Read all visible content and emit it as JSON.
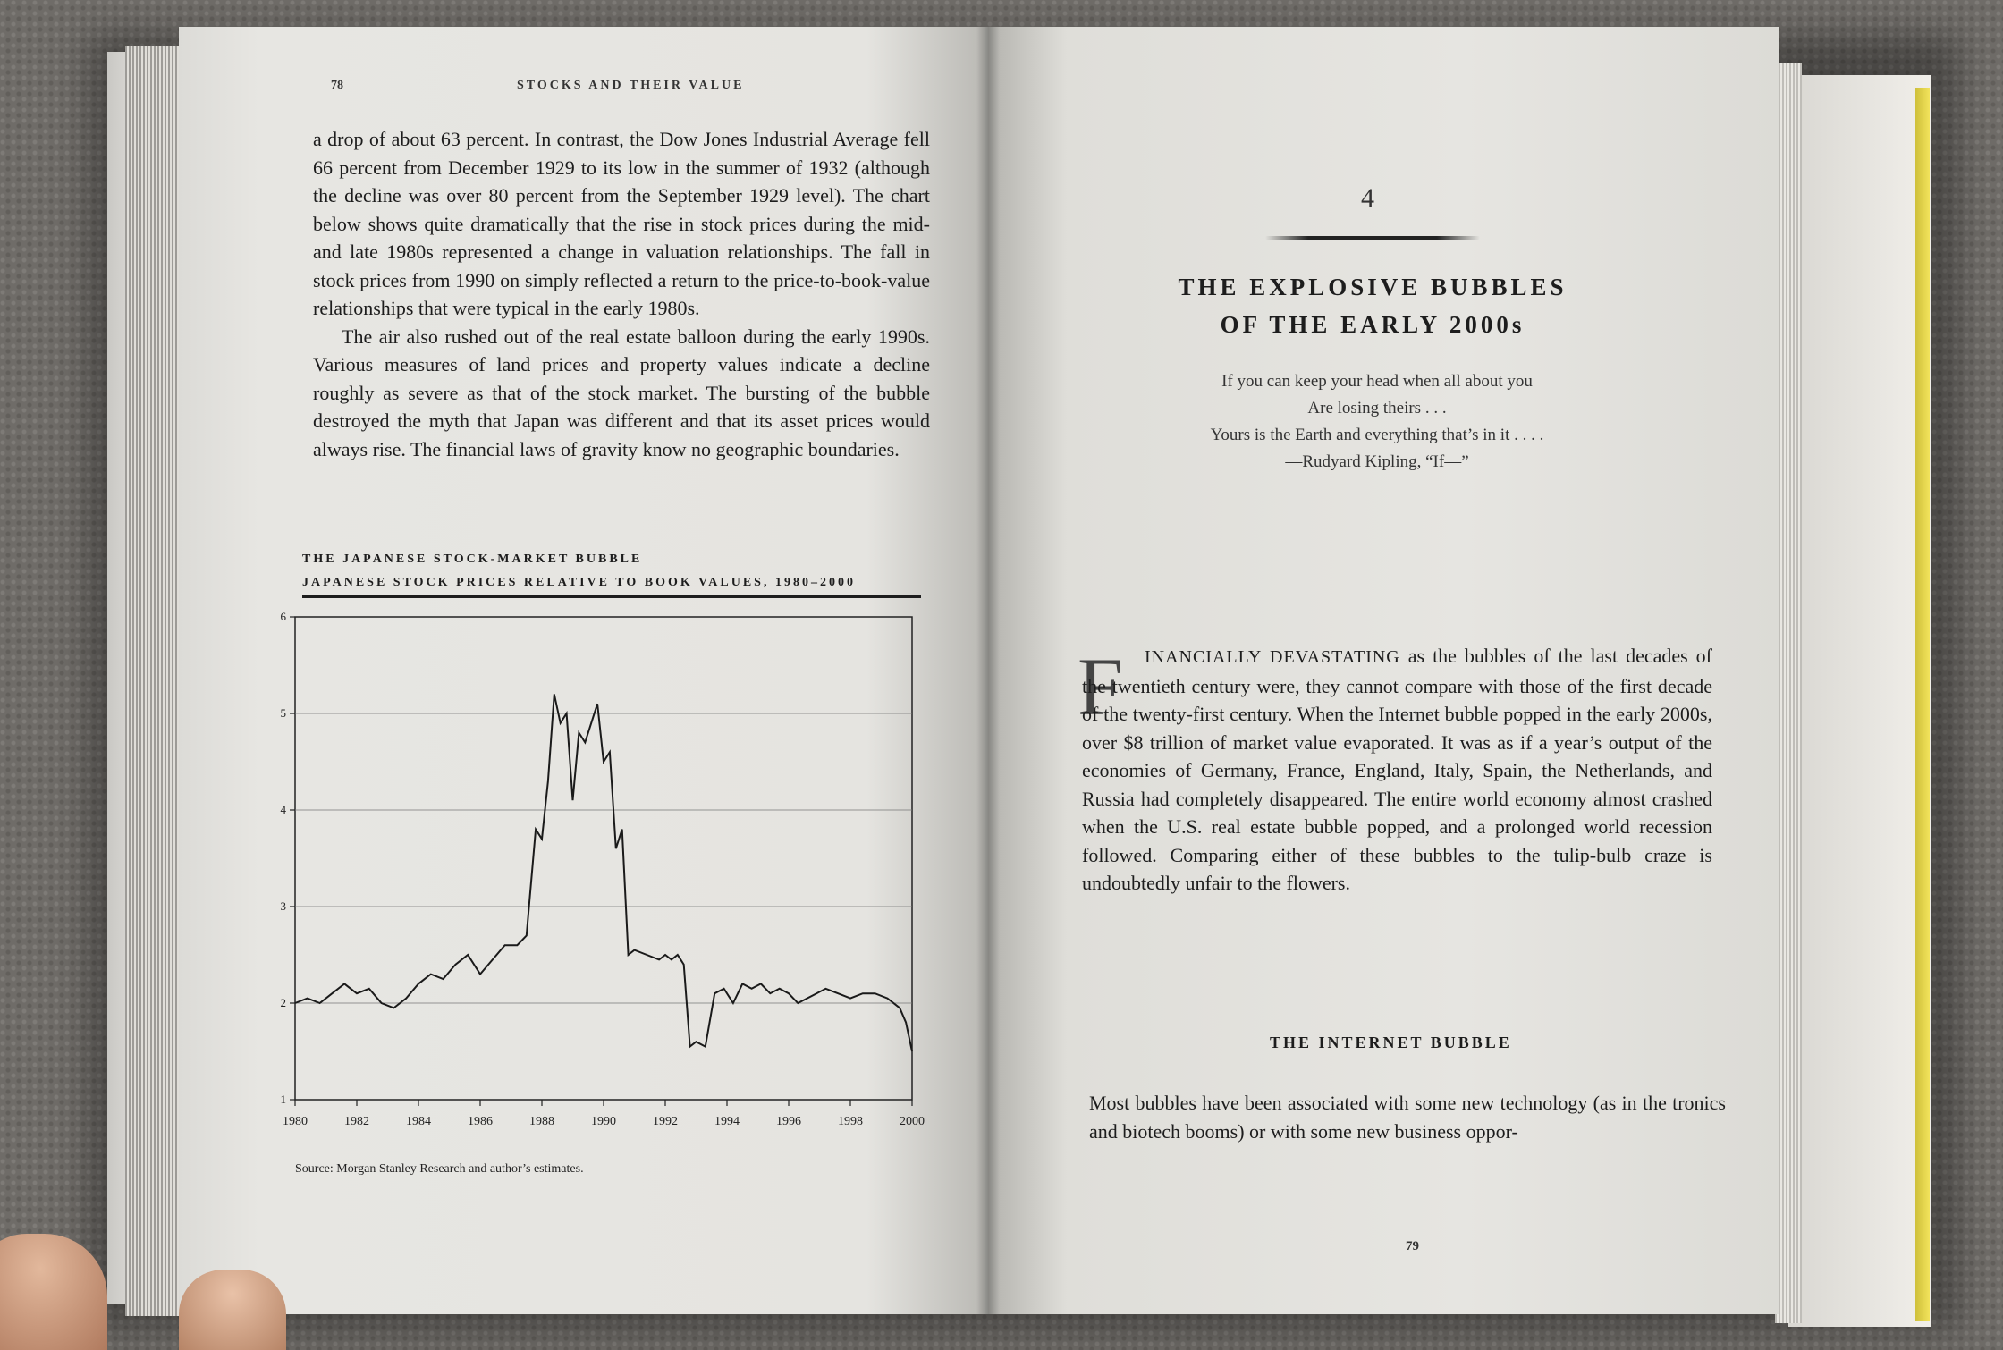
{
  "left_page": {
    "folio": "78",
    "running_head": "STOCKS AND THEIR VALUE",
    "paragraphs": [
      "a drop of about 63 percent. In contrast, the Dow Jones Industrial Average fell 66 percent from December 1929 to its low in the summer of 1932 (although the decline was over 80 percent from the September 1929 level). The chart below shows quite dramatically that the rise in stock prices during the mid- and late 1980s represented a change in valuation relationships. The fall in stock prices from 1990 on simply reflected a return to the price-to-book-value relationships that were typical in the early 1980s.",
      "The air also rushed out of the real estate balloon during the early 1990s. Various measures of land prices and property values indicate a decline roughly as severe as that of the stock market. The bursting of the bubble destroyed the myth that Japan was different and that its asset prices would always rise. The financial laws of gravity know no geographic boundaries."
    ],
    "chart_title_line1": "THE JAPANESE STOCK-MARKET BUBBLE",
    "chart_title_line2": "JAPANESE STOCK PRICES RELATIVE TO BOOK VALUES, 1980–2000",
    "source": "Source: Morgan Stanley Research and author’s estimates."
  },
  "chart_data": {
    "type": "line",
    "title": "THE JAPANESE STOCK-MARKET BUBBLE",
    "subtitle": "JAPANESE STOCK PRICES RELATIVE TO BOOK VALUES, 1980–2000",
    "xlabel": "",
    "ylabel": "",
    "xlim": [
      1980,
      2000
    ],
    "ylim": [
      1,
      6
    ],
    "x_ticks": [
      "1980",
      "1982",
      "1984",
      "1986",
      "1988",
      "1990",
      "1992",
      "1994",
      "1996",
      "1998",
      "2000"
    ],
    "y_ticks": [
      "1",
      "2",
      "3",
      "4",
      "5",
      "6"
    ],
    "grid": "horizontal",
    "series": [
      {
        "x": [
          1980.0,
          1980.4,
          1980.8,
          1981.2,
          1981.6,
          1982.0,
          1982.4,
          1982.8,
          1983.2,
          1983.6,
          1984.0,
          1984.4,
          1984.8,
          1985.2,
          1985.6,
          1986.0,
          1986.4,
          1986.8,
          1987.2,
          1987.5,
          1987.8,
          1988.0,
          1988.2,
          1988.4,
          1988.6,
          1988.8,
          1989.0,
          1989.2,
          1989.4,
          1989.6,
          1989.8,
          1990.0,
          1990.2,
          1990.4,
          1990.6,
          1990.8,
          1991.0,
          1991.4,
          1991.8,
          1992.0,
          1992.2,
          1992.4,
          1992.6,
          1992.8,
          1993.0,
          1993.3,
          1993.6,
          1993.9,
          1994.2,
          1994.5,
          1994.8,
          1995.1,
          1995.4,
          1995.7,
          1996.0,
          1996.3,
          1996.6,
          1996.9,
          1997.2,
          1997.6,
          1998.0,
          1998.4,
          1998.8,
          1999.2,
          1999.6,
          1999.8,
          2000.0
        ],
        "y": [
          2.0,
          2.05,
          2.0,
          2.1,
          2.2,
          2.1,
          2.15,
          2.0,
          1.95,
          2.05,
          2.2,
          2.3,
          2.25,
          2.4,
          2.5,
          2.3,
          2.45,
          2.6,
          2.6,
          2.7,
          3.8,
          3.7,
          4.3,
          5.2,
          4.9,
          5.0,
          4.1,
          4.8,
          4.7,
          4.9,
          5.1,
          4.5,
          4.6,
          3.6,
          3.8,
          2.5,
          2.55,
          2.5,
          2.45,
          2.5,
          2.45,
          2.5,
          2.4,
          1.55,
          1.6,
          1.55,
          2.1,
          2.15,
          2.0,
          2.2,
          2.15,
          2.2,
          2.1,
          2.15,
          2.1,
          2.0,
          2.05,
          2.1,
          2.15,
          2.1,
          2.05,
          2.1,
          2.1,
          2.05,
          1.95,
          1.8,
          1.5
        ]
      }
    ]
  },
  "right_page": {
    "chapter_number": "4",
    "chapter_title_line1": "THE EXPLOSIVE BUBBLES",
    "chapter_title_line2": "OF THE EARLY 2000s",
    "epigraph_line1": "If you can keep your head when all about you",
    "epigraph_line2": "Are losing theirs . . .",
    "epigraph_line3": "Yours is the Earth and everything that’s in it . . . .",
    "epigraph_attribution": "—Rudyard Kipling, “If—”",
    "drop_cap": "F",
    "opening_smallcaps": "INANCIALLY DEVASTATING",
    "opening_rest": " as the bubbles of the last decades of the twentieth century were, they cannot compare with those of the first decade of the twenty-first century. When the Internet bubble popped in the early 2000s, over $8 trillion of market value evaporated. It was as if a year’s output of the economies of Germany, France, England, Italy, Spain, the Netherlands, and Russia had completely disappeared. The entire world economy almost crashed when the U.S. real estate bubble popped, and a prolonged world recession followed. Comparing either of these bubbles to the tulip-bulb craze is undoubtedly unfair to the flowers.",
    "section_heading": "THE INTERNET BUBBLE",
    "section_text": "Most bubbles have been associated with some new technology (as in the tronics and biotech booms) or with some new business oppor-",
    "folio": "79"
  }
}
